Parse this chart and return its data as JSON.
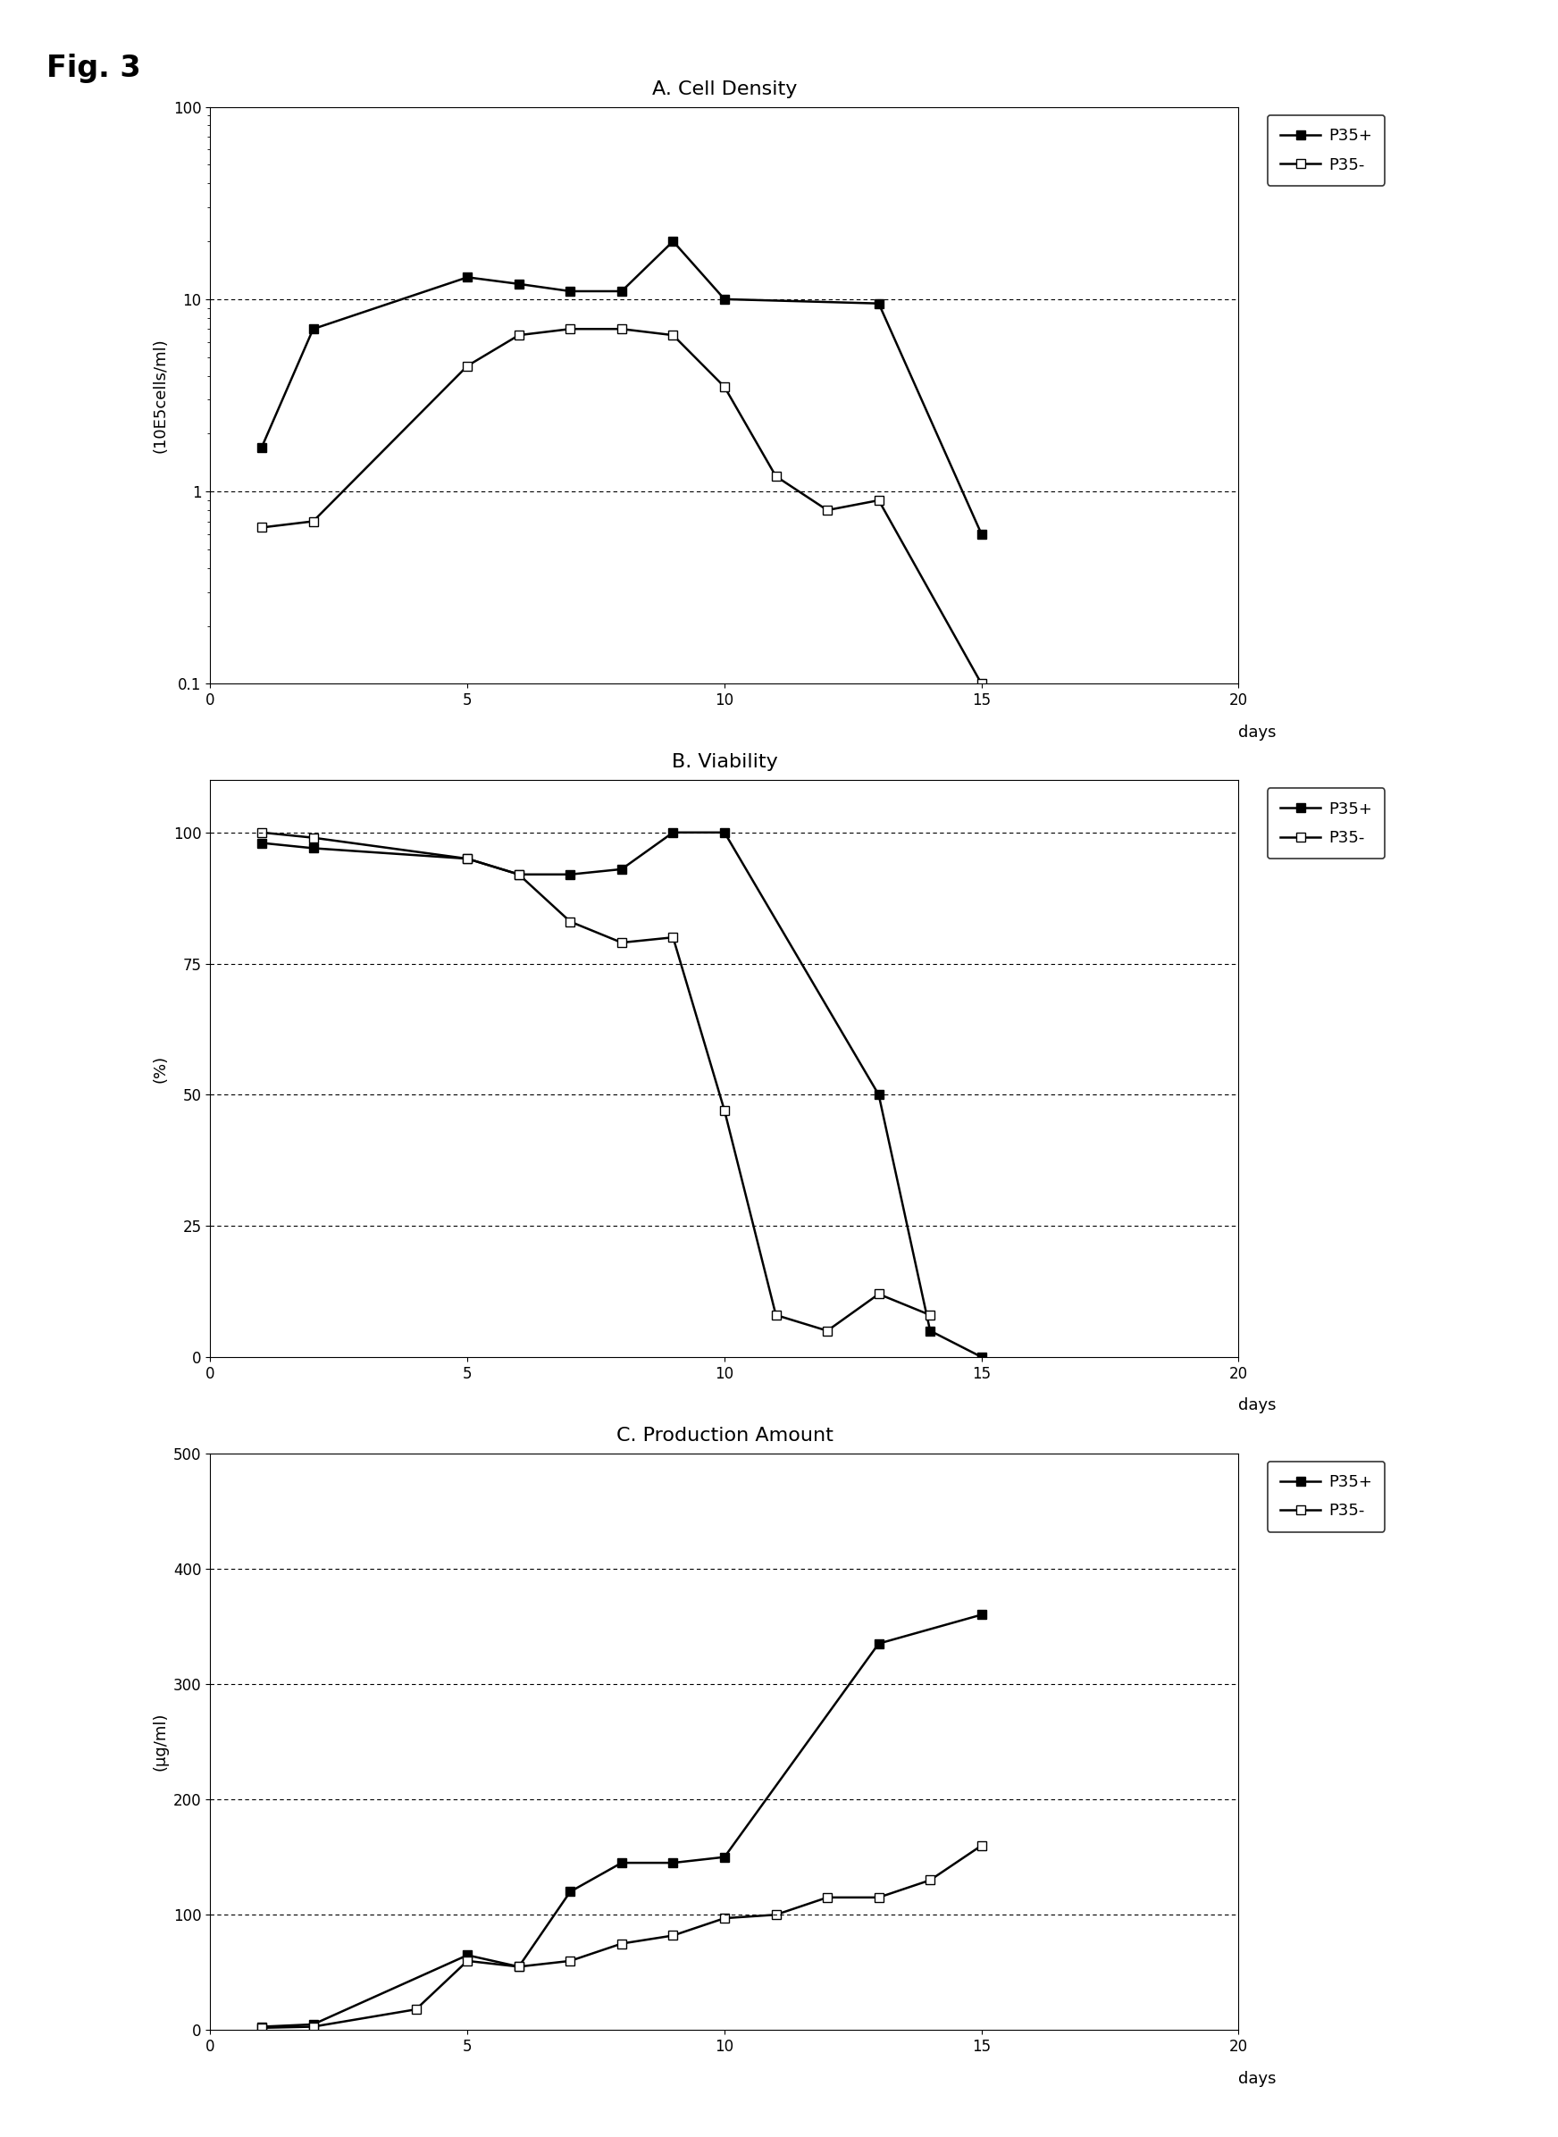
{
  "fig_label": "Fig. 3",
  "panel_A": {
    "title": "A. Cell Density",
    "ylabel": "(10E5cells/ml)",
    "xlim": [
      0,
      20
    ],
    "ylim": [
      0.1,
      100
    ],
    "xticks": [
      0,
      5,
      10,
      15,
      20
    ],
    "xlabel": "days",
    "p35plus_x": [
      1,
      2,
      5,
      6,
      7,
      8,
      9,
      10,
      13,
      15
    ],
    "p35plus_y": [
      1.7,
      7.0,
      13.0,
      12.0,
      11.0,
      11.0,
      20.0,
      10.0,
      9.5,
      0.6
    ],
    "p35minus_x": [
      1,
      2,
      5,
      6,
      7,
      8,
      9,
      10,
      11,
      12,
      13,
      15
    ],
    "p35minus_y": [
      0.65,
      0.7,
      4.5,
      6.5,
      7.0,
      7.0,
      6.5,
      3.5,
      1.2,
      0.8,
      0.9,
      0.1
    ],
    "hlines": [
      1,
      10
    ],
    "ytick_labels": [
      "0.1",
      "1",
      "10",
      "100"
    ]
  },
  "panel_B": {
    "title": "B. Viability",
    "ylabel": "(%)",
    "xlim": [
      0,
      20
    ],
    "ylim": [
      0,
      110
    ],
    "yticks": [
      0,
      25,
      50,
      75,
      100
    ],
    "xticks": [
      0,
      5,
      10,
      15,
      20
    ],
    "xlabel": "days",
    "p35plus_x": [
      1,
      2,
      5,
      6,
      7,
      8,
      9,
      10,
      13,
      14,
      15
    ],
    "p35plus_y": [
      98,
      97,
      95,
      92,
      92,
      93,
      100,
      100,
      50,
      5,
      0
    ],
    "p35minus_x": [
      1,
      2,
      5,
      6,
      7,
      8,
      9,
      10,
      11,
      12,
      13,
      14
    ],
    "p35minus_y": [
      100,
      99,
      95,
      92,
      83,
      79,
      80,
      47,
      8,
      5,
      12,
      8
    ],
    "hlines": [
      25,
      50,
      75,
      100
    ]
  },
  "panel_C": {
    "title": "C. Production Amount",
    "ylabel": "(μg/ml)",
    "xlim": [
      0,
      20
    ],
    "ylim": [
      0,
      500
    ],
    "yticks": [
      0,
      100,
      200,
      300,
      400,
      500
    ],
    "xticks": [
      0,
      5,
      10,
      15,
      20
    ],
    "xlabel": "days",
    "p35plus_x": [
      1,
      2,
      5,
      6,
      7,
      8,
      9,
      10,
      13,
      15
    ],
    "p35plus_y": [
      3,
      5,
      65,
      55,
      120,
      145,
      145,
      150,
      335,
      360
    ],
    "p35minus_x": [
      1,
      2,
      4,
      5,
      6,
      7,
      8,
      9,
      10,
      11,
      12,
      13,
      14,
      15
    ],
    "p35minus_y": [
      2,
      3,
      18,
      60,
      55,
      60,
      75,
      82,
      97,
      100,
      115,
      115,
      130,
      160
    ],
    "hlines": [
      100,
      200,
      300,
      400
    ]
  },
  "legend_p35plus": "P35+",
  "legend_p35minus": "P35-",
  "line_color": "#000000",
  "marker_filled": "s",
  "marker_open": "s",
  "linewidth": 1.8,
  "markersize": 7,
  "background_color": "#ffffff"
}
